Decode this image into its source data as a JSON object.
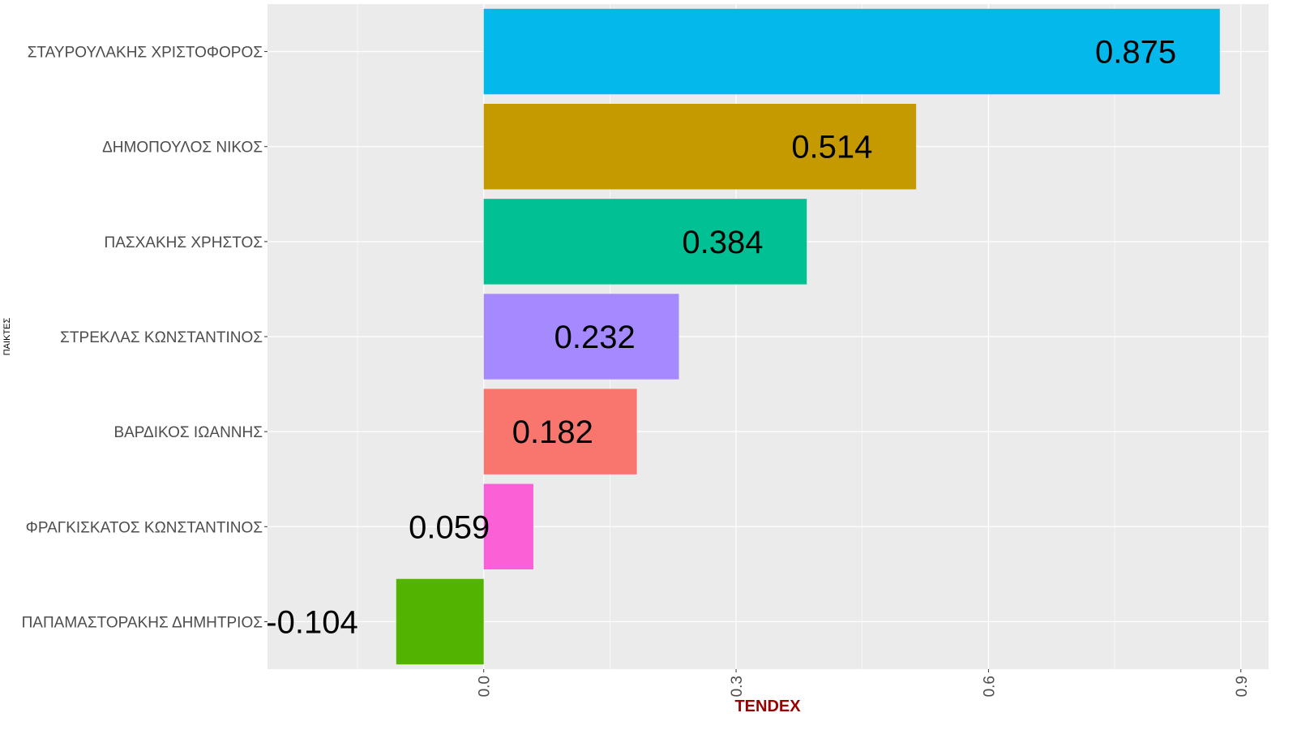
{
  "chart_data": {
    "type": "bar",
    "orientation": "horizontal",
    "title": "",
    "xlabel": "TENDEX",
    "ylabel": "ΠΑΙΚΤΕΣ",
    "xlim": [
      -0.257,
      0.933
    ],
    "xticks": [
      0.0,
      0.3,
      0.6,
      0.9
    ],
    "xtick_labels": [
      "0.0",
      "0.3",
      "0.6",
      "0.9"
    ],
    "grid": true,
    "legend": "none",
    "categories": [
      "ΣΤΑΥΡΟΥΛΑΚΗΣ ΧΡΙΣΤΟΦΟΡΟΣ",
      "ΔΗΜΟΠΟΥΛΟΣ ΝΙΚΟΣ",
      "ΠΑΣΧΑΚΗΣ ΧΡΗΣΤΟΣ",
      "ΣΤΡΕΚΛΑΣ ΚΩΝΣΤΑΝΤΙΝΟΣ",
      "ΒΑΡΔΙΚΟΣ ΙΩΑΝΝΗΣ",
      "ΦΡΑΓΚΙΣΚΑΤΟΣ ΚΩΝΣΤΑΝΤΙΝΟΣ",
      "ΠΑΠΑΜΑΣΤΟΡΑΚΗΣ ΔΗΜΗΤΡΙΟΣ"
    ],
    "values": [
      0.875,
      0.514,
      0.384,
      0.232,
      0.182,
      0.059,
      -0.104
    ],
    "data_labels": [
      "0.875",
      "0.514",
      "0.384",
      "0.232",
      "0.182",
      "0.059",
      "-0.104"
    ],
    "colors": [
      "#03B8EA",
      "#C49A00",
      "#00C094",
      "#A58AFF",
      "#F8766D",
      "#FB61D7",
      "#53B400"
    ],
    "panel_background": "#EBEBEB",
    "xlabel_color": "#990000"
  }
}
